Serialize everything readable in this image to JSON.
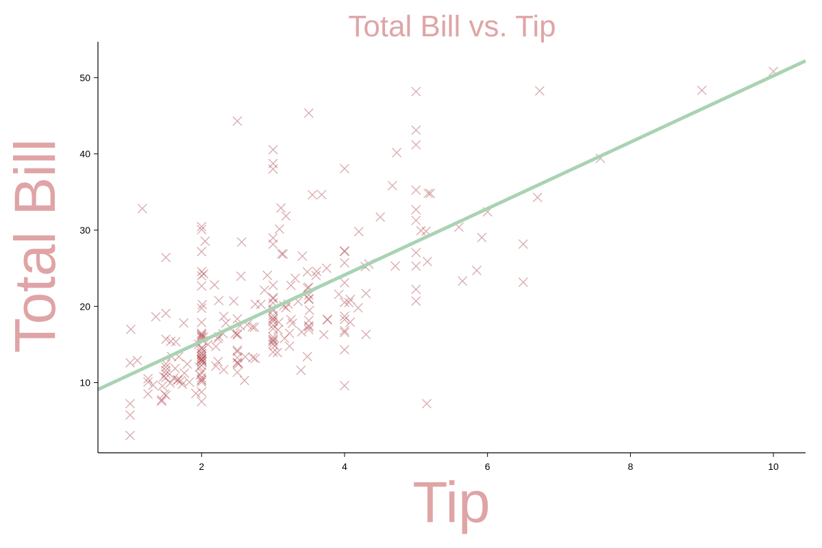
{
  "chart_data": {
    "type": "scatter",
    "title": "Total Bill vs. Tip",
    "xlabel": "Tip",
    "ylabel": "Total Bill",
    "xlim": [
      0.55,
      10.45
    ],
    "ylim": [
      0.8,
      54.7
    ],
    "xticks": [
      2,
      4,
      6,
      8,
      10
    ],
    "yticks": [
      10,
      20,
      30,
      40,
      50
    ],
    "grid": false,
    "colors": {
      "label": "#e0a4a6",
      "marker": "#b04a4f",
      "fit_line": "#a9d3b3",
      "axis": "#000000"
    },
    "fit_line": {
      "x": [
        0.55,
        10.45
      ],
      "y": [
        9.1,
        52.2
      ]
    },
    "series": [
      {
        "marker": "x",
        "x": [
          1.01,
          1.66,
          3.5,
          3.31,
          3.61,
          4.71,
          2.0,
          3.12,
          1.96,
          3.23,
          1.71,
          5.0,
          1.57,
          3.0,
          3.02,
          3.92,
          1.67,
          3.71,
          3.5,
          3.35,
          4.08,
          2.75,
          2.23,
          7.58,
          3.18,
          2.34,
          2.0,
          2.0,
          4.3,
          3.0,
          1.45,
          2.5,
          3.0,
          2.45,
          3.27,
          3.6,
          2.0,
          3.07,
          2.31,
          5.0,
          2.24,
          2.54,
          3.06,
          1.32,
          5.6,
          3.0,
          5.0,
          6.0,
          2.05,
          3.0,
          2.5,
          2.6,
          5.2,
          1.56,
          4.34,
          3.51,
          3.0,
          1.5,
          1.76,
          6.73,
          3.21,
          2.0,
          1.98,
          3.76,
          2.64,
          3.15,
          2.47,
          1.0,
          2.01,
          2.09,
          1.97,
          3.0,
          3.14,
          5.0,
          2.2,
          1.25,
          3.08,
          4.0,
          3.0,
          2.71,
          3.0,
          3.4,
          1.83,
          5.0,
          2.03,
          5.17,
          2.0,
          4.0,
          5.85,
          3.0,
          3.0,
          3.5,
          1.0,
          4.3,
          3.25,
          4.73,
          4.0,
          1.5,
          3.0,
          1.5,
          2.5,
          3.0,
          2.5,
          3.48,
          4.08,
          1.64,
          4.06,
          4.29,
          3.76,
          4.0,
          3.0,
          1.0,
          4.0,
          2.55,
          4.0,
          3.5,
          5.07,
          1.5,
          1.8,
          2.92,
          2.31,
          1.68,
          2.5,
          2.0,
          2.52,
          4.2,
          1.48,
          2.0,
          2.0,
          2.18,
          1.5,
          2.83,
          1.5,
          2.0,
          3.25,
          1.25,
          2.0,
          2.0,
          2.0,
          2.75,
          3.5,
          6.7,
          5.0,
          5.0,
          2.3,
          1.5,
          1.36,
          1.63,
          1.73,
          2.0,
          2.5,
          2.0,
          2.74,
          2.0,
          2.0,
          5.14,
          5.0,
          3.75,
          2.61,
          2.0,
          3.5,
          2.5,
          2.0,
          2.0,
          3.0,
          3.48,
          2.24,
          4.5,
          1.61,
          2.0,
          10.0,
          3.16,
          5.15,
          3.18,
          4.0,
          3.11,
          2.0,
          2.0,
          4.0,
          3.55,
          3.68,
          5.65,
          3.5,
          6.5,
          3.0,
          5.0,
          3.5,
          2.0,
          3.5,
          4.0,
          1.5,
          4.19,
          2.56,
          2.02,
          4.0,
          1.44,
          2.0,
          5.0,
          2.0,
          2.0,
          4.0,
          2.01,
          2.0,
          2.5,
          4.0,
          3.23,
          3.41,
          3.0,
          2.03,
          2.23,
          2.0,
          5.16,
          9.0,
          2.5,
          6.5,
          1.1,
          3.0,
          1.5,
          1.44,
          3.09,
          2.2,
          3.48,
          1.92,
          3.0,
          1.58,
          2.5,
          2.0,
          3.0,
          2.72,
          2.88,
          2.0,
          3.0,
          3.39,
          1.47,
          3.0,
          1.25,
          1.0,
          1.17,
          4.67,
          5.92,
          2.0,
          2.0,
          1.75,
          3.0
        ],
        "y": [
          16.99,
          10.34,
          21.01,
          23.68,
          24.59,
          25.29,
          8.77,
          26.88,
          15.04,
          14.78,
          10.27,
          35.26,
          15.42,
          18.43,
          14.83,
          21.58,
          10.33,
          16.29,
          16.97,
          20.65,
          17.92,
          20.29,
          15.77,
          39.42,
          19.82,
          17.81,
          13.37,
          12.69,
          21.7,
          19.65,
          9.55,
          18.35,
          15.06,
          20.69,
          17.78,
          24.06,
          16.31,
          16.93,
          18.69,
          31.27,
          16.04,
          17.46,
          13.94,
          9.68,
          30.4,
          18.29,
          22.23,
          32.4,
          28.55,
          18.04,
          12.54,
          10.29,
          34.81,
          9.94,
          25.56,
          19.49,
          38.01,
          26.41,
          11.24,
          48.27,
          20.29,
          13.81,
          11.02,
          18.29,
          17.59,
          20.08,
          16.45,
          3.07,
          20.23,
          15.01,
          12.02,
          17.07,
          26.86,
          25.28,
          14.73,
          10.51,
          17.92,
          27.2,
          22.76,
          17.29,
          19.44,
          16.66,
          10.07,
          32.68,
          15.98,
          34.83,
          13.03,
          18.28,
          24.71,
          21.16,
          28.97,
          22.49,
          5.75,
          16.32,
          22.75,
          40.17,
          27.28,
          12.03,
          21.01,
          12.46,
          11.35,
          15.38,
          44.3,
          22.42,
          20.92,
          15.36,
          20.49,
          25.21,
          18.24,
          14.31,
          14.0,
          7.25,
          38.07,
          23.95,
          25.71,
          17.31,
          29.93,
          10.65,
          12.43,
          24.08,
          11.69,
          13.42,
          14.26,
          15.95,
          12.48,
          29.8,
          8.52,
          14.52,
          11.38,
          22.82,
          19.08,
          20.27,
          11.17,
          12.26,
          18.26,
          8.51,
          10.33,
          14.15,
          16.0,
          13.16,
          17.47,
          34.3,
          41.19,
          27.05,
          16.43,
          8.35,
          18.64,
          11.87,
          9.78,
          7.51,
          14.07,
          13.13,
          17.26,
          24.55,
          19.77,
          29.85,
          48.17,
          25.0,
          13.39,
          16.49,
          21.5,
          12.66,
          16.21,
          13.81,
          17.51,
          24.52,
          20.76,
          31.71,
          10.59,
          10.63,
          50.81,
          15.81,
          7.25,
          31.85,
          16.82,
          32.9,
          17.89,
          14.48,
          9.6,
          34.63,
          34.65,
          23.33,
          45.35,
          23.17,
          40.55,
          20.69,
          20.9,
          30.46,
          18.15,
          23.1,
          15.69,
          19.81,
          28.44,
          15.48,
          16.58,
          7.56,
          10.34,
          43.11,
          13.0,
          13.51,
          18.71,
          12.74,
          13.0,
          16.4,
          20.53,
          16.47,
          26.59,
          38.73,
          24.27,
          12.76,
          30.06,
          25.89,
          48.33,
          13.27,
          28.17,
          12.9,
          28.15,
          11.59,
          7.74,
          30.14,
          12.16,
          13.42,
          8.58,
          15.98,
          13.42,
          16.27,
          10.09,
          20.45,
          13.28,
          22.12,
          24.01,
          15.69,
          11.61,
          10.77,
          15.53,
          10.07,
          12.6,
          32.83,
          35.83,
          29.03,
          27.18,
          22.67,
          17.82,
          18.78
        ]
      }
    ]
  }
}
